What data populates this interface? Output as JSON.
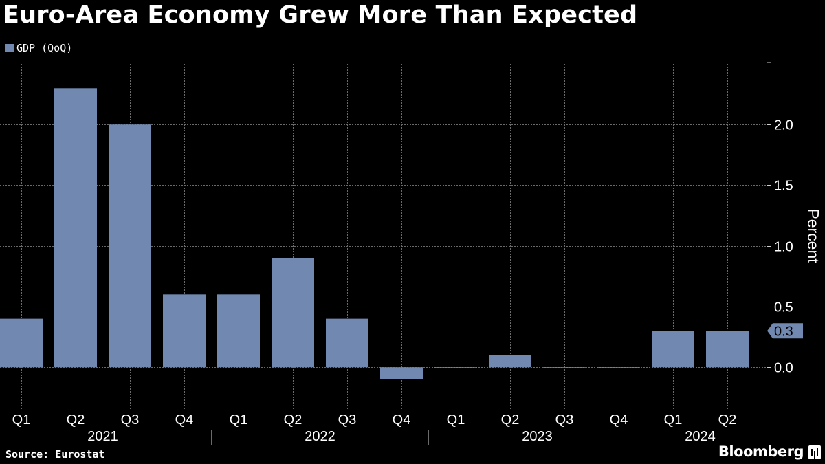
{
  "title": "Euro-Area Economy Grew More Than Expected",
  "source": "Source: Eurostat",
  "brand": "Bloomberg",
  "chart_data": {
    "type": "bar",
    "series": [
      {
        "name": "GDP (QoQ)",
        "color": "#7189b0",
        "values": [
          0.4,
          2.3,
          2.0,
          0.6,
          0.6,
          0.9,
          0.4,
          -0.1,
          0.0,
          0.1,
          0.0,
          0.0,
          0.3,
          0.3
        ]
      }
    ],
    "categories": [
      "Q1",
      "Q2",
      "Q3",
      "Q4",
      "Q1",
      "Q2",
      "Q3",
      "Q4",
      "Q1",
      "Q2",
      "Q3",
      "Q4",
      "Q1",
      "Q2"
    ],
    "groups": [
      {
        "label": "2021",
        "count": 4
      },
      {
        "label": "2022",
        "count": 4
      },
      {
        "label": "2023",
        "count": 4
      },
      {
        "label": "2024",
        "count": 2
      }
    ],
    "ylabel": "Percent",
    "ylim": [
      -0.35,
      2.5
    ],
    "yticks": [
      0.0,
      0.5,
      1.0,
      1.5,
      2.0
    ],
    "ytick_labels": [
      "0.0",
      "0.5",
      "1.0",
      "1.5",
      "2.0"
    ],
    "last_value_label": "0.3",
    "grid": true,
    "legend_position": "top-left"
  }
}
